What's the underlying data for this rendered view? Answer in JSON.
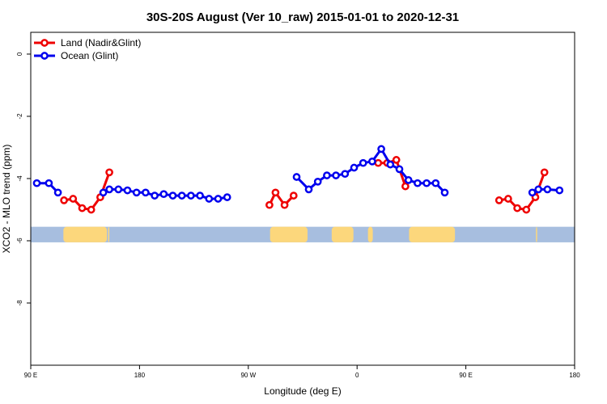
{
  "chart_data": {
    "type": "line",
    "title": "30S-20S August (Ver 10_raw)   2015-01-01 to 2020-12-31",
    "xlabel": "Longitude (deg E)",
    "ylabel": "XCO2 - MLO trend (ppm)",
    "xlim": [
      90,
      540
    ],
    "ylim": [
      -10,
      0.7
    ],
    "x_ticks": [
      {
        "value": 90,
        "label": "90 E"
      },
      {
        "value": 180,
        "label": "180"
      },
      {
        "value": 270,
        "label": "90 W"
      },
      {
        "value": 360,
        "label": "0"
      },
      {
        "value": 450,
        "label": "90 E"
      },
      {
        "value": 540,
        "label": "180"
      }
    ],
    "y_ticks": [
      {
        "value": 0,
        "label": "0"
      },
      {
        "value": -2,
        "label": "-2"
      },
      {
        "value": -4,
        "label": "-4"
      },
      {
        "value": -6,
        "label": "-6"
      },
      {
        "value": -8,
        "label": "-8"
      }
    ],
    "legend": {
      "position": "top-left",
      "entries": [
        {
          "name": "Land (Nadir&Glint)",
          "color": "#ee0000"
        },
        {
          "name": "Ocean (Glint)",
          "color": "#0000ee"
        }
      ]
    },
    "landmask": {
      "y_range": [
        -6.05,
        -5.55
      ],
      "ocean_color": "#a7bedf",
      "land_color": "#fcd77c",
      "land_segments": [
        [
          117,
          153
        ],
        [
          154,
          155
        ],
        [
          288,
          319
        ],
        [
          339,
          357
        ],
        [
          369,
          373
        ],
        [
          403,
          441
        ],
        [
          508,
          509
        ]
      ]
    },
    "series": [
      {
        "name": "Land (Nadir&Glint)",
        "color": "#ee0000",
        "segments": [
          [
            [
              117.5,
              -4.7
            ],
            [
              125,
              -4.65
            ],
            [
              132.5,
              -4.95
            ],
            [
              140,
              -5.0
            ],
            [
              147.5,
              -4.6
            ],
            [
              155,
              -3.8
            ]
          ],
          [
            [
              287.5,
              -4.85
            ],
            [
              292.5,
              -4.45
            ],
            [
              300,
              -4.85
            ],
            [
              307.5,
              -4.55
            ]
          ],
          [
            [
              377.5,
              -3.5
            ],
            [
              385,
              -3.5
            ],
            [
              392.5,
              -3.4
            ],
            [
              400,
              -4.25
            ]
          ],
          [
            [
              477.5,
              -4.7
            ],
            [
              485,
              -4.65
            ],
            [
              492.5,
              -4.95
            ],
            [
              500,
              -5.0
            ],
            [
              507.5,
              -4.6
            ],
            [
              515,
              -3.8
            ]
          ]
        ]
      },
      {
        "name": "Ocean (Glint)",
        "color": "#0000ee",
        "segments": [
          [
            [
              95,
              -4.15
            ],
            [
              105,
              -4.15
            ],
            [
              112.5,
              -4.45
            ]
          ],
          [
            [
              150,
              -4.45
            ],
            [
              155,
              -4.35
            ],
            [
              162.5,
              -4.35
            ],
            [
              170,
              -4.38
            ],
            [
              177.5,
              -4.45
            ],
            [
              185,
              -4.45
            ],
            [
              192.5,
              -4.55
            ],
            [
              200,
              -4.5
            ],
            [
              207.5,
              -4.55
            ],
            [
              215,
              -4.55
            ],
            [
              222.5,
              -4.55
            ],
            [
              230,
              -4.55
            ],
            [
              237.5,
              -4.65
            ],
            [
              245,
              -4.65
            ],
            [
              252.5,
              -4.6
            ]
          ],
          [
            [
              310,
              -3.95
            ],
            [
              320,
              -4.35
            ],
            [
              327.5,
              -4.1
            ],
            [
              335,
              -3.9
            ],
            [
              342.5,
              -3.9
            ],
            [
              350,
              -3.85
            ],
            [
              357.5,
              -3.65
            ],
            [
              365,
              -3.5
            ],
            [
              372.5,
              -3.45
            ],
            [
              380,
              -3.05
            ],
            [
              387.5,
              -3.55
            ],
            [
              395,
              -3.7
            ],
            [
              402.5,
              -4.05
            ],
            [
              410,
              -4.15
            ],
            [
              417.5,
              -4.15
            ],
            [
              425,
              -4.15
            ],
            [
              432.5,
              -4.45
            ]
          ],
          [
            [
              505,
              -4.45
            ],
            [
              510,
              -4.35
            ],
            [
              517.5,
              -4.35
            ],
            [
              527.5,
              -4.38
            ]
          ]
        ]
      }
    ]
  }
}
